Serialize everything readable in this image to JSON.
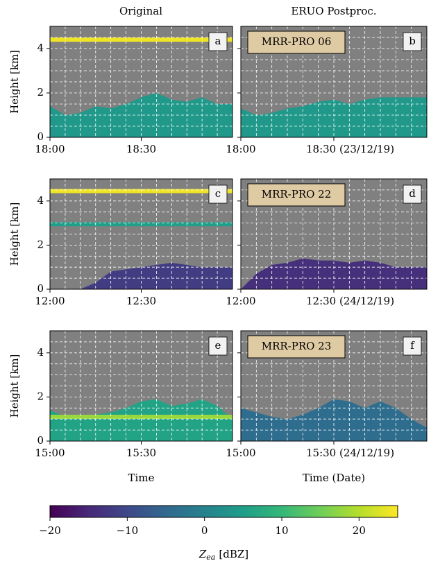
{
  "column_titles": [
    "Original",
    "ERUO Postproc."
  ],
  "chart_data": [
    {
      "type": "heatmap",
      "panel_label": "a",
      "ylabel": "Height [km]",
      "xlim": [
        0,
        60
      ],
      "xticks": [
        {
          "value": 0,
          "label": "18:00"
        },
        {
          "value": 30,
          "label": "18:30"
        }
      ],
      "ylim": [
        0,
        5
      ],
      "yticks": [
        0,
        2,
        4
      ],
      "show_ytick_labels": true,
      "grid": true,
      "xgrid_step": 5,
      "ygrid_step": 0.5,
      "echo": {
        "x": [
          0,
          5,
          10,
          15,
          20,
          25,
          30,
          35,
          40,
          45,
          50,
          55,
          60
        ],
        "top": [
          1.4,
          1.0,
          1.1,
          1.4,
          1.3,
          1.5,
          1.8,
          2.0,
          1.7,
          1.6,
          1.8,
          1.5,
          1.5
        ],
        "dbz": 4
      },
      "lines": [
        {
          "y": 4.4,
          "dbz": 24
        }
      ]
    },
    {
      "type": "heatmap",
      "panel_label": "b",
      "title": "MRR-PRO 06",
      "xlim": [
        0,
        60
      ],
      "xticks": [
        {
          "value": 0,
          "label": "18:00"
        },
        {
          "value": 30,
          "label": "18:30 (23/12/19)"
        }
      ],
      "ylim": [
        0,
        5
      ],
      "yticks": [
        0,
        2,
        4
      ],
      "show_ytick_labels": false,
      "grid": true,
      "xgrid_step": 5,
      "ygrid_step": 0.5,
      "echo": {
        "x": [
          0,
          5,
          10,
          15,
          20,
          25,
          30,
          35,
          40,
          45,
          50,
          55,
          60
        ],
        "top": [
          1.3,
          1.0,
          1.1,
          1.3,
          1.4,
          1.6,
          1.7,
          1.5,
          1.7,
          1.8,
          1.8,
          1.8,
          1.8
        ],
        "dbz": 4
      },
      "lines": []
    },
    {
      "type": "heatmap",
      "panel_label": "c",
      "ylabel": "Height [km]",
      "xlim": [
        0,
        60
      ],
      "xticks": [
        {
          "value": 0,
          "label": "12:00"
        },
        {
          "value": 30,
          "label": "12:30"
        }
      ],
      "ylim": [
        0,
        5
      ],
      "yticks": [
        0,
        2,
        4
      ],
      "show_ytick_labels": true,
      "grid": true,
      "xgrid_step": 5,
      "ygrid_step": 0.5,
      "echo": {
        "x": [
          0,
          5,
          10,
          15,
          20,
          25,
          30,
          35,
          40,
          45,
          50,
          55,
          60
        ],
        "top": [
          0,
          0,
          0,
          0.3,
          0.8,
          0.9,
          1.0,
          1.1,
          1.2,
          1.1,
          1.0,
          1.0,
          1.0
        ],
        "dbz": -12
      },
      "lines": [
        {
          "y": 4.45,
          "dbz": 24
        },
        {
          "y": 2.95,
          "dbz": 5
        }
      ]
    },
    {
      "type": "heatmap",
      "panel_label": "d",
      "title": "MRR-PRO 22",
      "xlim": [
        0,
        60
      ],
      "xticks": [
        {
          "value": 0,
          "label": "12:00"
        },
        {
          "value": 30,
          "label": "12:30 (24/12/19)"
        }
      ],
      "ylim": [
        0,
        5
      ],
      "yticks": [
        0,
        2,
        4
      ],
      "show_ytick_labels": false,
      "grid": true,
      "xgrid_step": 5,
      "ygrid_step": 0.5,
      "echo": {
        "x": [
          0,
          5,
          10,
          15,
          20,
          25,
          30,
          35,
          40,
          45,
          50,
          55,
          60
        ],
        "top": [
          0,
          0.7,
          1.1,
          1.2,
          1.4,
          1.3,
          1.3,
          1.2,
          1.3,
          1.2,
          1.0,
          1.0,
          1.0
        ],
        "dbz": -14
      },
      "lines": []
    },
    {
      "type": "heatmap",
      "panel_label": "e",
      "ylabel": "Height [km]",
      "xlabel": "Time",
      "xlim": [
        0,
        60
      ],
      "xticks": [
        {
          "value": 0,
          "label": "15:00"
        },
        {
          "value": 30,
          "label": "15:30"
        }
      ],
      "ylim": [
        0,
        5
      ],
      "yticks": [
        0,
        2,
        4
      ],
      "show_ytick_labels": true,
      "grid": true,
      "xgrid_step": 5,
      "ygrid_step": 0.5,
      "echo": {
        "x": [
          0,
          5,
          10,
          15,
          20,
          25,
          30,
          35,
          40,
          45,
          50,
          55,
          60
        ],
        "top": [
          1.4,
          1.1,
          1.1,
          1.2,
          1.3,
          1.5,
          1.8,
          1.9,
          1.6,
          1.7,
          1.9,
          1.6,
          1.0
        ],
        "dbz": 6
      },
      "lines": [
        {
          "y": 1.1,
          "dbz": 18
        }
      ]
    },
    {
      "type": "heatmap",
      "panel_label": "f",
      "title": "MRR-PRO 23",
      "xlabel": "Time (Date)",
      "xlim": [
        0,
        60
      ],
      "xticks": [
        {
          "value": 0,
          "label": "15:00"
        },
        {
          "value": 30,
          "label": "15:30 (24/12/19)"
        }
      ],
      "ylim": [
        0,
        5
      ],
      "yticks": [
        0,
        2,
        4
      ],
      "show_ytick_labels": false,
      "grid": true,
      "xgrid_step": 5,
      "ygrid_step": 0.5,
      "echo": {
        "x": [
          0,
          5,
          10,
          15,
          20,
          25,
          30,
          35,
          40,
          45,
          50,
          55,
          60
        ],
        "top": [
          1.5,
          1.3,
          1.1,
          1.0,
          1.2,
          1.5,
          1.9,
          1.8,
          1.5,
          1.8,
          1.5,
          1.0,
          0.6
        ],
        "dbz": -4
      },
      "lines": []
    }
  ],
  "colorbar": {
    "lim": [
      -20,
      25
    ],
    "ticks": [
      {
        "value": -20,
        "label": "−20"
      },
      {
        "value": -10,
        "label": "−10"
      },
      0,
      10,
      20
    ],
    "colormap": [
      "#440154",
      "#482878",
      "#3e4989",
      "#31688e",
      "#26828e",
      "#1f9e89",
      "#35b779",
      "#6ece58",
      "#b5de2b",
      "#fde725"
    ],
    "label": {
      "symbol": "Z",
      "subscript": "ea",
      "unit": "[dBZ]"
    }
  }
}
